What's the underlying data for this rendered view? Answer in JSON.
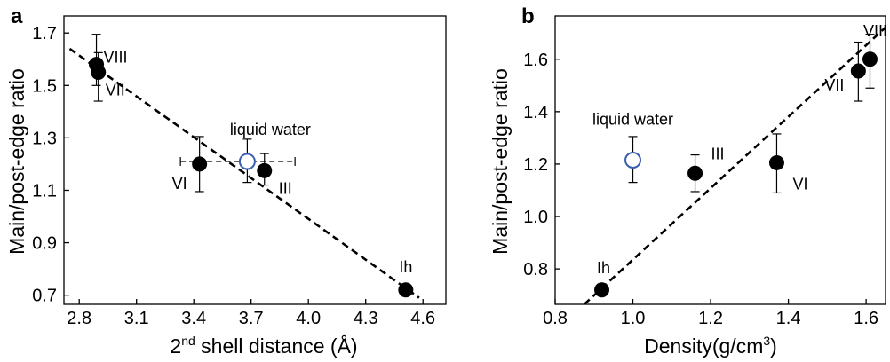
{
  "chart_data": [
    {
      "type": "scatter",
      "panel": "a",
      "ylabel": "Main/post-edge ratio",
      "xlabel_parts": {
        "base": "2",
        "sup": "nd",
        "rest": " shell distance (Å)"
      },
      "xlim": [
        2.72,
        4.72
      ],
      "ylim": [
        0.665,
        1.765
      ],
      "xticks": [
        "2.8",
        "3.1",
        "3.4",
        "3.7",
        "4.0",
        "4.3",
        "4.6"
      ],
      "yticks": [
        "0.7",
        "0.9",
        "1.1",
        "1.3",
        "1.5",
        "1.7"
      ],
      "points": [
        {
          "label": "VIII",
          "x": 2.89,
          "y": 1.58,
          "yerr": [
            1.5,
            1.695
          ],
          "marker": "filled"
        },
        {
          "label": "VII",
          "x": 2.9,
          "y": 1.55,
          "yerr": [
            1.44,
            1.625
          ],
          "marker": "filled"
        },
        {
          "label": "VI",
          "x": 3.43,
          "y": 1.2,
          "yerr": [
            1.095,
            1.305
          ],
          "marker": "filled"
        },
        {
          "label": "liquid water",
          "x": 3.68,
          "y": 1.21,
          "yerr": [
            1.13,
            1.295
          ],
          "xerr": [
            3.33,
            3.93
          ],
          "marker": "open"
        },
        {
          "label": "III",
          "x": 3.77,
          "y": 1.175,
          "yerr": [
            1.12,
            1.24
          ],
          "marker": "filled"
        },
        {
          "label": "Ih",
          "x": 4.51,
          "y": 0.72,
          "marker": "filled"
        }
      ],
      "fit_line": {
        "x": [
          2.75,
          4.58
        ],
        "y": [
          1.64,
          0.69
        ]
      }
    },
    {
      "type": "scatter",
      "panel": "b",
      "ylabel": "Main/post-edge ratio",
      "xlabel_parts": {
        "base": "Density(g/cm",
        "sup": "3",
        "rest": ")"
      },
      "xlim": [
        0.8,
        1.65
      ],
      "ylim": [
        0.665,
        1.765
      ],
      "xticks": [
        "0.8",
        "1.0",
        "1.2",
        "1.4",
        "1.6"
      ],
      "yticks": [
        "0.8",
        "1.0",
        "1.2",
        "1.4",
        "1.6"
      ],
      "points": [
        {
          "label": "Ih",
          "x": 0.92,
          "y": 0.72,
          "marker": "filled"
        },
        {
          "label": "liquid water",
          "x": 1.0,
          "y": 1.215,
          "yerr": [
            1.13,
            1.305
          ],
          "marker": "open"
        },
        {
          "label": "III",
          "x": 1.16,
          "y": 1.165,
          "yerr": [
            1.095,
            1.235
          ],
          "marker": "filled"
        },
        {
          "label": "VI",
          "x": 1.37,
          "y": 1.205,
          "yerr": [
            1.09,
            1.315
          ],
          "marker": "filled"
        },
        {
          "label": "VII",
          "x": 1.58,
          "y": 1.555,
          "yerr": [
            1.44,
            1.665
          ],
          "marker": "filled"
        },
        {
          "label": "VIII",
          "x": 1.61,
          "y": 1.6,
          "yerr": [
            1.49,
            1.695
          ],
          "marker": "filled"
        }
      ],
      "fit_line": {
        "x": [
          0.875,
          1.66
        ],
        "y": [
          0.665,
          1.735
        ]
      }
    }
  ],
  "colors": {
    "open_marker": "#3a5fb0",
    "marker": "#000000",
    "line": "#000000"
  }
}
